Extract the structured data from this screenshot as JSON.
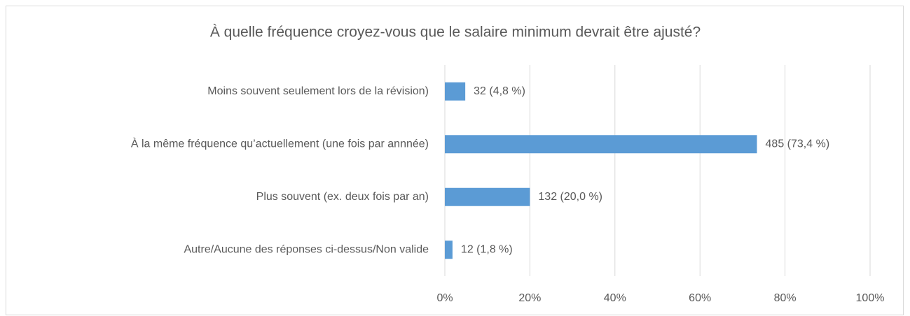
{
  "chart_data": {
    "type": "bar",
    "orientation": "horizontal",
    "title": "À quelle fréquence croyez-vous que le salaire minimum devrait être ajusté?",
    "categories": [
      "Moins souvent seulement lors de la révision)",
      "À la même fréquence qu’actuellement (une fois par annnée)",
      "Plus souvent (ex. deux fois par an)",
      "Autre/Aucune des réponses ci-dessus/Non valide"
    ],
    "values": [
      4.8,
      73.4,
      20.0,
      1.8
    ],
    "value_labels": [
      "32 (4,8 %)",
      "485 (73,4 %)",
      "132 (20,0 %)",
      "12 (1,8 %)"
    ],
    "color": "#5b9bd5",
    "xlim": [
      0,
      100
    ],
    "xticks": [
      {
        "value": 0,
        "label": "0%"
      },
      {
        "value": 20,
        "label": "20%"
      },
      {
        "value": 40,
        "label": "40%"
      },
      {
        "value": 60,
        "label": "60%"
      },
      {
        "value": 80,
        "label": "80%"
      },
      {
        "value": 100,
        "label": "100%"
      }
    ],
    "grid": true
  }
}
